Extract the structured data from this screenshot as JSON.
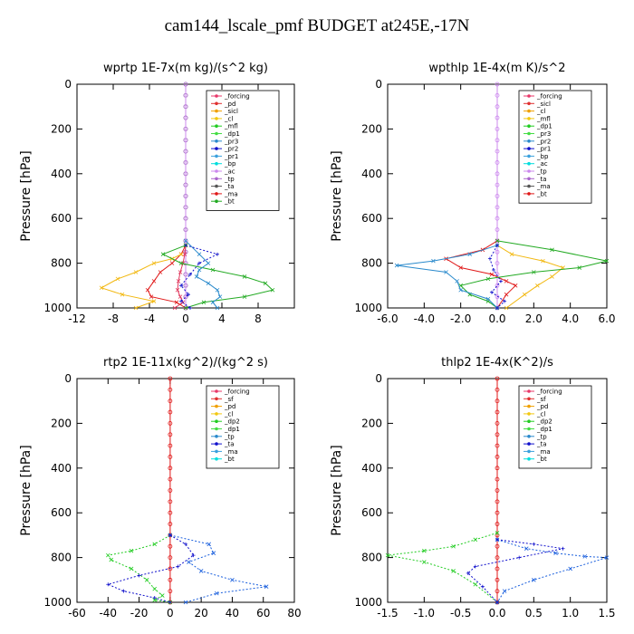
{
  "title": "cam144_lscale_pmf  BUDGET at245E,-17N",
  "chart_data": [
    {
      "type": "line",
      "title": "wprtp   1E-7x(m kg)/(s^2 kg)",
      "ylabel": "Pressure [hPa]",
      "xlim": [
        -12,
        12
      ],
      "ylim": [
        1000,
        0
      ],
      "xticks": [
        "-12",
        "-8",
        "-4",
        "0",
        "4",
        "8"
      ],
      "xtick_values": [
        -12,
        -8,
        -4,
        0,
        4,
        8
      ],
      "yticks": [
        "0",
        "200",
        "400",
        "600",
        "800",
        "1000"
      ],
      "ytick_values": [
        0,
        200,
        400,
        600,
        800,
        1000
      ],
      "legend": [
        "_forcing",
        "_pd",
        "_sicl",
        "_cl",
        "_mfl",
        "_dp1",
        "_pr3",
        "_pr2",
        "_pr1",
        "_bp",
        "_ac",
        "_tp",
        "_ta",
        "_ma",
        "_bt"
      ],
      "series": [
        {
          "color": "#000000",
          "style": "solid",
          "marker": "circle",
          "x": [
            0,
            0,
            0,
            0,
            0,
            0,
            0,
            0,
            0,
            0,
            0,
            0,
            0,
            0,
            0,
            0,
            0,
            0,
            0,
            0,
            0
          ],
          "y": [
            0,
            50,
            100,
            150,
            200,
            250,
            300,
            350,
            400,
            450,
            500,
            550,
            600,
            650,
            700,
            750,
            800,
            850,
            900,
            950,
            1000
          ]
        },
        {
          "color": "#cc88ee",
          "style": "solid",
          "marker": "circle",
          "x": [
            0,
            0,
            0,
            0,
            0,
            0,
            0,
            0,
            0,
            0,
            0,
            0,
            0,
            0,
            0,
            0,
            0,
            0,
            0,
            0,
            0
          ],
          "y": [
            0,
            50,
            100,
            150,
            200,
            250,
            300,
            350,
            400,
            450,
            500,
            550,
            600,
            650,
            700,
            750,
            800,
            850,
            900,
            950,
            1000
          ]
        },
        {
          "color": "#e0365c",
          "style": "solid",
          "marker": "x",
          "x": [
            0,
            -0.1,
            -0.3,
            -0.6,
            -0.8,
            -0.9,
            -0.6,
            -0.3,
            -1.2
          ],
          "y": [
            720,
            760,
            800,
            840,
            880,
            920,
            950,
            975,
            1000
          ]
        },
        {
          "color": "#e01818",
          "style": "solid",
          "marker": "x",
          "x": [
            0,
            -0.5,
            -1.5,
            -2.8,
            -3.5,
            -4.2,
            -3.8,
            -1.0,
            0
          ],
          "y": [
            720,
            760,
            800,
            840,
            880,
            920,
            950,
            975,
            1000
          ]
        },
        {
          "color": "#f2b810",
          "style": "solid",
          "marker": "x",
          "x": [
            -0.5,
            -1.5,
            -3.5,
            -5.5,
            -7.5,
            -9.3,
            -7.0,
            -3.5,
            -5.5
          ],
          "y": [
            760,
            780,
            800,
            840,
            870,
            910,
            940,
            970,
            1000
          ]
        },
        {
          "color": "#22aa22",
          "style": "solid",
          "marker": "x",
          "x": [
            0,
            -2.5,
            -0.5,
            3.0,
            6.5,
            8.8,
            9.6,
            6.5,
            2.0,
            0
          ],
          "y": [
            720,
            760,
            800,
            830,
            860,
            890,
            920,
            950,
            975,
            1000
          ]
        },
        {
          "color": "#2a8acc",
          "style": "solid",
          "marker": "x",
          "x": [
            0,
            1.5,
            2.5,
            1.5,
            1.2,
            2.5,
            3.5,
            3.8,
            3.0,
            3.5
          ],
          "y": [
            700,
            760,
            800,
            830,
            860,
            890,
            920,
            950,
            975,
            1000
          ]
        },
        {
          "color": "#1010cc",
          "style": "dotted",
          "marker": "plus",
          "x": [
            0,
            3.5,
            1.5,
            0.5,
            -0.5,
            0.3,
            -0.5,
            0.5
          ],
          "y": [
            720,
            760,
            800,
            850,
            900,
            940,
            970,
            1000
          ]
        }
      ]
    },
    {
      "type": "line",
      "title": "wpthlp   1E-4x(m K)/s^2",
      "ylabel": "Pressure [hPa]",
      "xlim": [
        -6,
        6
      ],
      "ylim": [
        1000,
        0
      ],
      "xticks": [
        "-6.0",
        "-4.0",
        "-2.0",
        "0.0",
        "2.0",
        "4.0",
        "6.0"
      ],
      "xtick_values": [
        -6,
        -4,
        -2,
        0,
        2,
        4,
        6
      ],
      "yticks": [
        "0",
        "200",
        "400",
        "600",
        "800",
        "1000"
      ],
      "ytick_values": [
        0,
        200,
        400,
        600,
        800,
        1000
      ],
      "legend": [
        "_forcing",
        "_sicl",
        "_cl",
        "_mfl",
        "_dp1",
        "_pr3",
        "_pr2",
        "_pr1",
        "_bp",
        "_ac",
        "_tp",
        "_ta",
        "_ma",
        "_bt"
      ],
      "series": [
        {
          "color": "#cc88ee",
          "style": "solid",
          "marker": "circle",
          "x": [
            0,
            0,
            0,
            0,
            0,
            0,
            0,
            0,
            0,
            0,
            0,
            0,
            0,
            0,
            0,
            0,
            0,
            0,
            0,
            0,
            0
          ],
          "y": [
            0,
            50,
            100,
            150,
            200,
            250,
            300,
            350,
            400,
            450,
            500,
            550,
            600,
            650,
            700,
            750,
            800,
            850,
            900,
            950,
            1000
          ]
        },
        {
          "color": "#e01818",
          "style": "solid",
          "marker": "x",
          "x": [
            0,
            -0.8,
            -2.8,
            -2.0,
            -0.3,
            0.5,
            1.0,
            0.5,
            0
          ],
          "y": [
            700,
            740,
            780,
            820,
            850,
            880,
            900,
            940,
            1000
          ]
        },
        {
          "color": "#f2b810",
          "style": "solid",
          "marker": "x",
          "x": [
            0,
            0.8,
            2.5,
            3.6,
            3.0,
            2.2,
            1.5,
            0.5
          ],
          "y": [
            720,
            760,
            790,
            820,
            860,
            900,
            940,
            1000
          ]
        },
        {
          "color": "#22aa22",
          "style": "solid",
          "marker": "x",
          "x": [
            0,
            3.0,
            6.0,
            4.5,
            2.0,
            -0.5,
            -2.0,
            -1.5,
            -0.5,
            0
          ],
          "y": [
            700,
            740,
            790,
            820,
            840,
            870,
            900,
            940,
            970,
            1000
          ]
        },
        {
          "color": "#2a8acc",
          "style": "solid",
          "marker": "x",
          "x": [
            0,
            -1.5,
            -3.5,
            -5.5,
            -2.8,
            -2.2,
            -2.0,
            -0.5,
            0
          ],
          "y": [
            720,
            760,
            790,
            810,
            840,
            880,
            920,
            960,
            1000
          ]
        },
        {
          "color": "#1010cc",
          "style": "dotted",
          "marker": "plus",
          "x": [
            0,
            -0.4,
            -0.2,
            0.2,
            -0.3,
            0.4,
            0
          ],
          "y": [
            720,
            780,
            830,
            880,
            930,
            970,
            1000
          ]
        }
      ]
    },
    {
      "type": "line",
      "title": "rtp2   1E-11x(kg^2)/(kg^2 s)",
      "ylabel": "Pressure [hPa]",
      "xlim": [
        -60,
        80
      ],
      "ylim": [
        1000,
        0
      ],
      "xticks": [
        "-60",
        "-40",
        "-20",
        "0",
        "20",
        "40",
        "60",
        "80"
      ],
      "xtick_values": [
        -60,
        -40,
        -20,
        0,
        20,
        40,
        60,
        80
      ],
      "yticks": [
        "0",
        "200",
        "400",
        "600",
        "800",
        "1000"
      ],
      "ytick_values": [
        0,
        200,
        400,
        600,
        800,
        1000
      ],
      "legend": [
        "_forcing",
        "_sf",
        "_pd",
        "_cl",
        "_dp2",
        "_dp1",
        "_tp",
        "_ta",
        "_ma",
        "_bt"
      ],
      "series": [
        {
          "color": "#e01818",
          "style": "solid",
          "marker": "circle",
          "x": [
            0,
            0,
            0,
            0,
            0,
            0,
            0,
            0,
            0,
            0,
            0,
            0,
            0,
            0,
            0,
            0,
            0,
            0,
            0,
            0,
            0
          ],
          "y": [
            0,
            50,
            100,
            150,
            200,
            250,
            300,
            350,
            400,
            450,
            500,
            550,
            600,
            650,
            700,
            750,
            800,
            850,
            900,
            950,
            1000
          ]
        },
        {
          "color": "#22cc22",
          "style": "dotted",
          "marker": "x",
          "x": [
            0,
            -10,
            -25,
            -40,
            -38,
            -25,
            -15,
            -10,
            -5,
            -10,
            0
          ],
          "y": [
            700,
            740,
            770,
            790,
            810,
            850,
            900,
            940,
            970,
            990,
            1000
          ]
        },
        {
          "color": "#1a5fdd",
          "style": "dotted",
          "marker": "x",
          "x": [
            0,
            25,
            28,
            12,
            20,
            40,
            62,
            30,
            10
          ],
          "y": [
            700,
            740,
            780,
            820,
            860,
            900,
            930,
            960,
            1000
          ]
        },
        {
          "color": "#1010cc",
          "style": "dotted",
          "marker": "plus",
          "x": [
            0,
            10,
            15,
            5,
            -20,
            -40,
            -30,
            -10,
            0
          ],
          "y": [
            700,
            740,
            790,
            840,
            880,
            920,
            950,
            980,
            1000
          ]
        }
      ]
    },
    {
      "type": "line",
      "title": "thlp2   1E-4x(K^2)/s",
      "ylabel": "Pressure [hPa]",
      "xlim": [
        -1.5,
        1.5
      ],
      "ylim": [
        1000,
        0
      ],
      "xticks": [
        "-1.5",
        "-1.0",
        "-0.5",
        "0.0",
        "0.5",
        "1.0",
        "1.5"
      ],
      "xtick_values": [
        -1.5,
        -1.0,
        -0.5,
        0,
        0.5,
        1.0,
        1.5
      ],
      "yticks": [
        "0",
        "200",
        "400",
        "600",
        "800",
        "1000"
      ],
      "ytick_values": [
        0,
        200,
        400,
        600,
        800,
        1000
      ],
      "legend": [
        "_forcing",
        "_sf",
        "_pd",
        "_cl",
        "_dp2",
        "_dp1",
        "_tp",
        "_ta",
        "_ma",
        "_bt"
      ],
      "series": [
        {
          "color": "#e01818",
          "style": "solid",
          "marker": "circle",
          "x": [
            0,
            0,
            0,
            0,
            0,
            0,
            0,
            0,
            0,
            0,
            0,
            0,
            0,
            0,
            0,
            0,
            0,
            0,
            0,
            0,
            0
          ],
          "y": [
            0,
            50,
            100,
            150,
            200,
            250,
            300,
            350,
            400,
            450,
            500,
            550,
            600,
            650,
            700,
            750,
            800,
            850,
            900,
            950,
            1000
          ]
        },
        {
          "color": "#22cc22",
          "style": "dotted",
          "marker": "x",
          "x": [
            0,
            -0.3,
            -0.6,
            -1.0,
            -1.5,
            -1.0,
            -0.6,
            -0.3,
            0
          ],
          "y": [
            690,
            720,
            750,
            770,
            790,
            820,
            860,
            920,
            1000
          ]
        },
        {
          "color": "#1a5fdd",
          "style": "dotted",
          "marker": "x",
          "x": [
            0,
            0.4,
            0.8,
            1.2,
            1.5,
            1.0,
            0.5,
            0.1,
            0
          ],
          "y": [
            720,
            760,
            780,
            795,
            800,
            850,
            900,
            950,
            1000
          ]
        },
        {
          "color": "#1010cc",
          "style": "dotted",
          "marker": "plus",
          "x": [
            0,
            0.5,
            0.9,
            0.3,
            -0.3,
            -0.4,
            -0.2,
            0
          ],
          "y": [
            720,
            740,
            760,
            800,
            840,
            870,
            930,
            1000
          ]
        }
      ]
    }
  ]
}
